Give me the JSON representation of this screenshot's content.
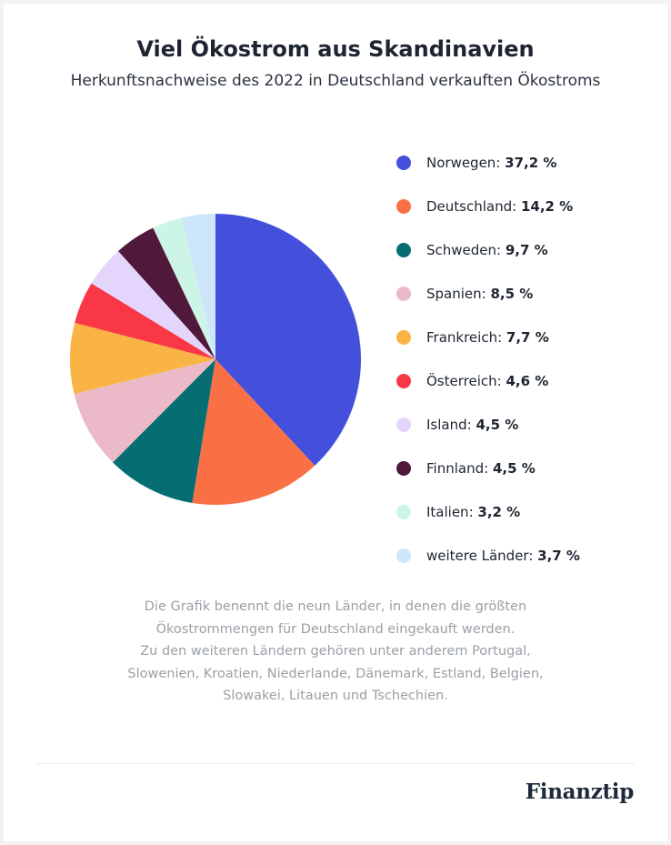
{
  "header": {
    "title": "Viel Ökostrom aus Skandinavien",
    "subtitle": "Herkunftsnachweise des 2022 in Deutschland verkauften Ökostroms"
  },
  "chart_data": {
    "type": "pie",
    "title": "Viel Ökostrom aus Skandinavien",
    "subtitle": "Herkunftsnachweise des 2022 in Deutschland verkauften Ökostroms",
    "unit": "%",
    "start_angle": "12 o'clock, clockwise",
    "legend_position": "right",
    "slices": [
      {
        "label": "Norwegen",
        "value": 37.2,
        "value_label": "37,2 %",
        "color": "#4450dc"
      },
      {
        "label": "Deutschland",
        "value": 14.2,
        "value_label": "14,2 %",
        "color": "#fa7045"
      },
      {
        "label": "Schweden",
        "value": 9.7,
        "value_label": "9,7 %",
        "color": "#066e73"
      },
      {
        "label": "Spanien",
        "value": 8.5,
        "value_label": "8,5 %",
        "color": "#ebb9c8"
      },
      {
        "label": "Frankreich",
        "value": 7.7,
        "value_label": "7,7 %",
        "color": "#fab446"
      },
      {
        "label": "Österreich",
        "value": 4.6,
        "value_label": "4,6 %",
        "color": "#fa3746"
      },
      {
        "label": "Island",
        "value": 4.5,
        "value_label": "4,5 %",
        "color": "#e3d5fc"
      },
      {
        "label": "Finnland",
        "value": 4.5,
        "value_label": "4,5 %",
        "color": "#50193c"
      },
      {
        "label": "Italien",
        "value": 3.2,
        "value_label": "3,2 %",
        "color": "#cdf5e6"
      },
      {
        "label": "weitere Länder",
        "value": 3.7,
        "value_label": "3,7 %",
        "color": "#cde6fa"
      }
    ]
  },
  "note": {
    "lines": [
      "Die Grafik benennt die neun Länder, in denen die größten",
      "Ökostrommengen für Deutschland eingekauft werden.",
      "Zu den weiteren Ländern gehören unter anderem Portugal,",
      "Slowenien, Kroatien, Niederlande, Dänemark, Estland, Belgien,",
      "Slowakei, Litauen und Tschechien."
    ]
  },
  "footer": {
    "brand": "Finanztip"
  }
}
